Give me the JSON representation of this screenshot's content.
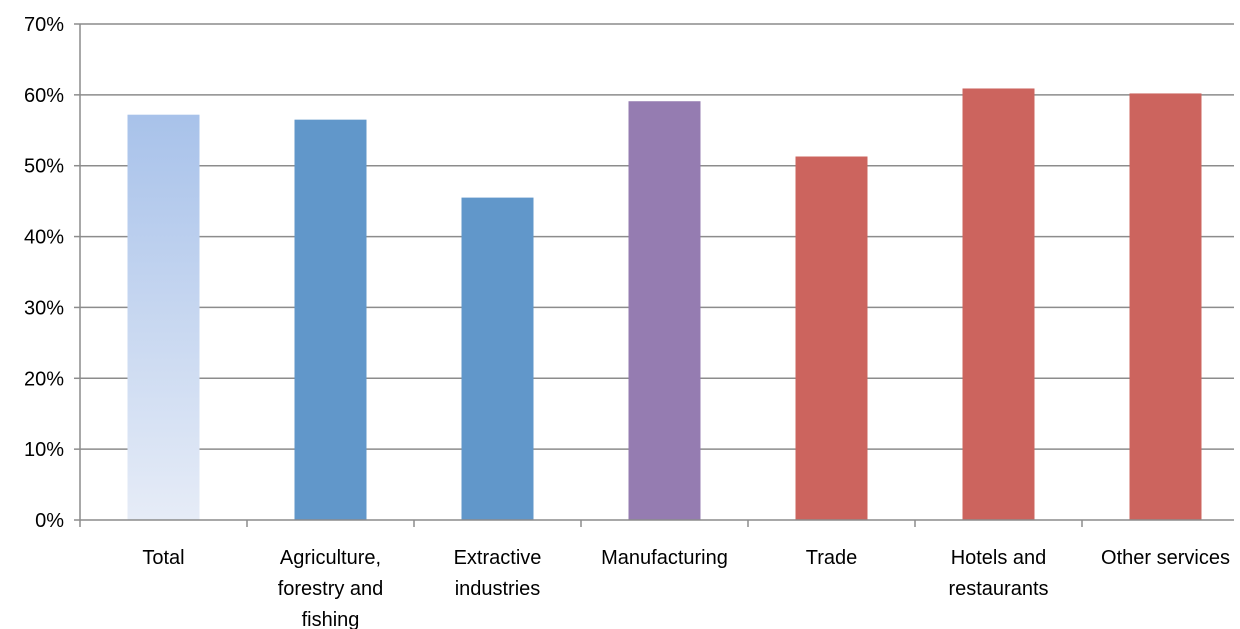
{
  "chart_data": {
    "type": "bar",
    "title": "",
    "xlabel": "",
    "ylabel": "",
    "ylim": [
      0,
      70
    ],
    "yticks": [
      0,
      10,
      20,
      30,
      40,
      50,
      60,
      70
    ],
    "ytick_labels": [
      "0%",
      "10%",
      "20%",
      "30%",
      "40%",
      "50%",
      "60%",
      "70%"
    ],
    "grid": true,
    "legend": "none",
    "categories": [
      [
        "Total"
      ],
      [
        "Agriculture,",
        "forestry and",
        "fishing"
      ],
      [
        "Extractive",
        "industries"
      ],
      [
        "Manufacturing"
      ],
      [
        "Trade"
      ],
      [
        "Hotels and",
        "restaurants"
      ],
      [
        "Other services"
      ]
    ],
    "values": [
      57.2,
      56.5,
      45.5,
      59.1,
      51.3,
      60.9,
      60.2
    ],
    "bar_colors": [
      "#aec6ea",
      "#6197ca",
      "#6197ca",
      "#957cb1",
      "#cc645e",
      "#cc645e",
      "#cc645e"
    ],
    "gradient_first_bar": true
  }
}
